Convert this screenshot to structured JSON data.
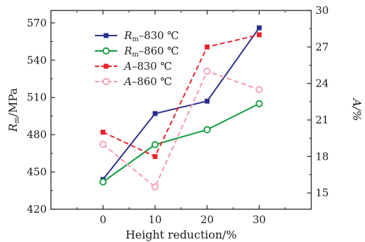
{
  "chart_data": {
    "type": "line",
    "title": "",
    "xlabel": "Height reduction/%",
    "ylabel_left": {
      "main": "R",
      "sub": "m",
      "rest": "/MPa"
    },
    "ylabel_right": "A/%",
    "x": [
      0,
      10,
      20,
      30
    ],
    "x_ticks": [
      "0",
      "10",
      "20",
      "30"
    ],
    "xlim": [
      -10,
      40
    ],
    "ylim_left": [
      420,
      580
    ],
    "y_ticks_left": [
      "420",
      "450",
      "480",
      "510",
      "540",
      "570"
    ],
    "ylim_right": [
      13.667,
      30
    ],
    "y_ticks_right": [
      "15",
      "18",
      "21",
      "24",
      "27",
      "30"
    ],
    "grid": false,
    "legend_position": "top-left",
    "series": [
      {
        "name": "R",
        "name_sub": "m",
        "name_rest": "–830 ℃",
        "axis": "left",
        "values": [
          444,
          497,
          507,
          566
        ],
        "color": "#2b2f8c",
        "marker": "square-filled",
        "line": "solid"
      },
      {
        "name": "R",
        "name_sub": "m",
        "name_rest": "–860 ℃",
        "axis": "left",
        "values": [
          442,
          472,
          484,
          505
        ],
        "color": "#0a9a3a",
        "marker": "circle-open",
        "line": "solid"
      },
      {
        "name": "A",
        "name_sub": "",
        "name_rest": "–830 ℃",
        "axis": "right",
        "values": [
          20.0,
          18.0,
          27.0,
          28.0
        ],
        "color": "#e8232a",
        "marker": "square-filled",
        "line": "dashed"
      },
      {
        "name": "A",
        "name_sub": "",
        "name_rest": "–860 ℃",
        "axis": "right",
        "values": [
          19.0,
          15.5,
          25.0,
          23.5
        ],
        "color": "#f59aac",
        "marker": "circle-open",
        "line": "dashed"
      }
    ]
  }
}
